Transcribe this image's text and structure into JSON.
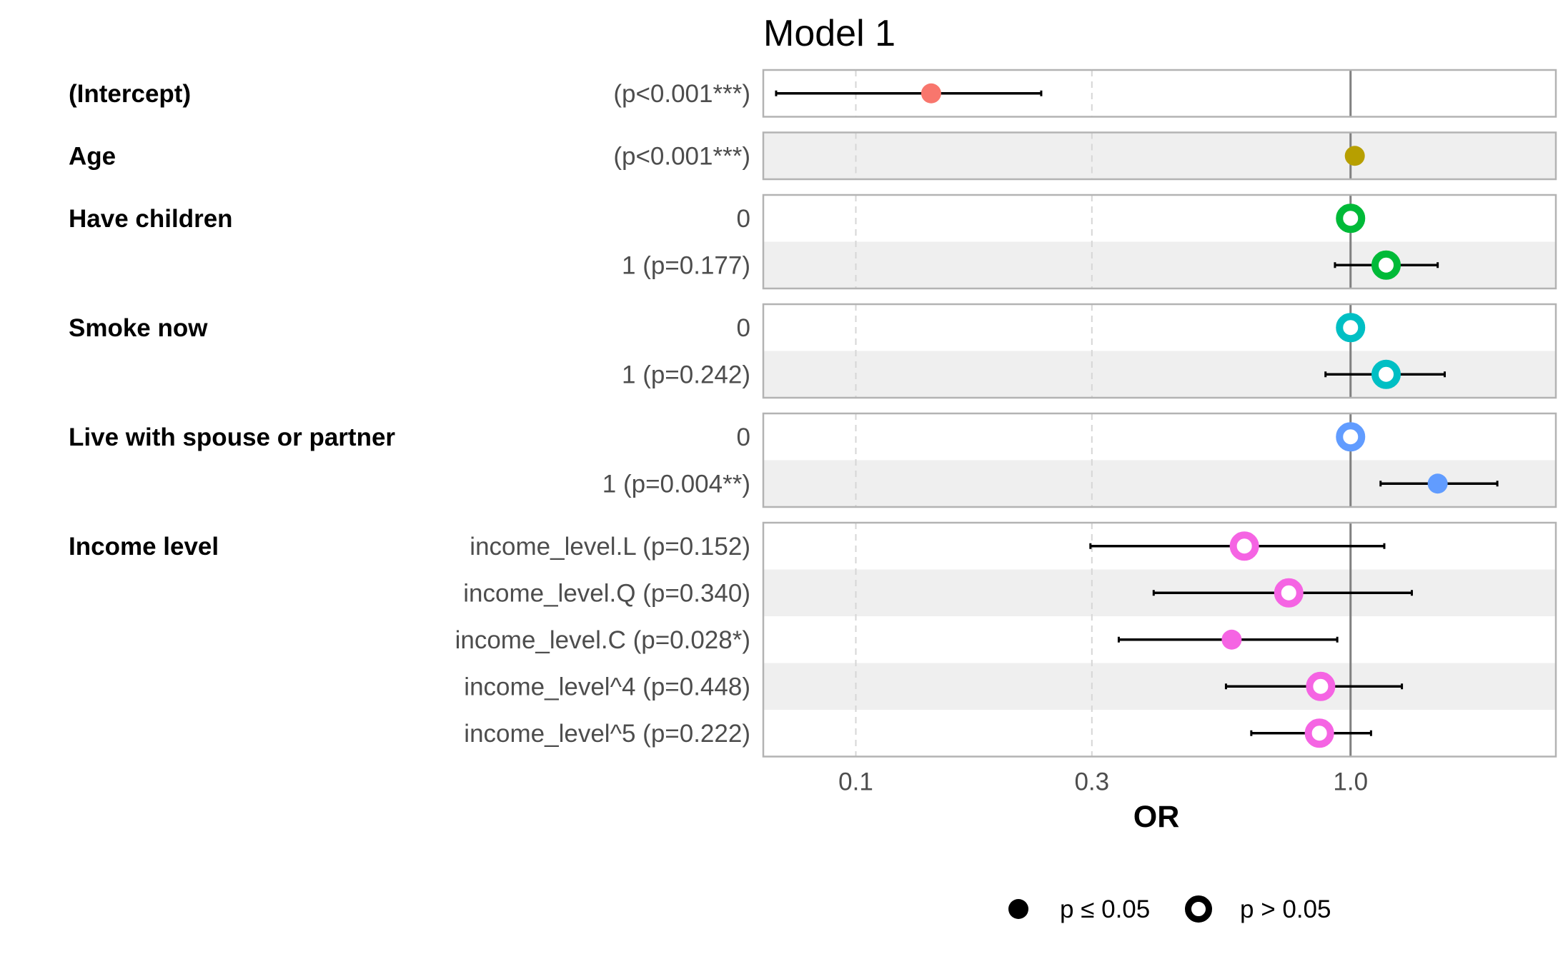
{
  "chart_data": {
    "type": "scatter",
    "subtype": "forest-plot",
    "title": "Model 1",
    "xlabel": "OR",
    "x_scale": "log",
    "xlim": [
      0.065,
      2.6
    ],
    "x_ticks": [
      {
        "value": 0.1,
        "label": "0.1"
      },
      {
        "value": 0.3,
        "label": "0.3"
      },
      {
        "value": 1.0,
        "label": "1.0"
      }
    ],
    "reference_line": 1.0,
    "grid": "vertical dashed",
    "legend_position": "bottom",
    "legend": [
      {
        "label": "p ≤ 0.05",
        "marker": "filled"
      },
      {
        "label": "p > 0.05",
        "marker": "hollow"
      }
    ],
    "groups": [
      {
        "variable": "(Intercept)",
        "color": "#F8766D",
        "rows": [
          {
            "label": "(p<0.001***)",
            "or": 0.142,
            "ci": [
              0.069,
              0.237
            ],
            "significant": true,
            "reference": false
          }
        ]
      },
      {
        "variable": "Age",
        "color": "#B79F00",
        "rows": [
          {
            "label": "(p<0.001***)",
            "or": 1.02,
            "ci": null,
            "significant": true,
            "reference": false
          }
        ]
      },
      {
        "variable": "Have children",
        "color": "#00BA38",
        "rows": [
          {
            "label": "0",
            "or": 1.0,
            "ci": null,
            "significant": false,
            "reference": true
          },
          {
            "label": "1 (p=0.177)",
            "or": 1.18,
            "ci": [
              0.93,
              1.5
            ],
            "significant": false,
            "reference": false
          }
        ]
      },
      {
        "variable": "Smoke now",
        "color": "#00BFC4",
        "rows": [
          {
            "label": "0",
            "or": 1.0,
            "ci": null,
            "significant": false,
            "reference": true
          },
          {
            "label": "1 (p=0.242)",
            "or": 1.18,
            "ci": [
              0.89,
              1.55
            ],
            "significant": false,
            "reference": false
          }
        ]
      },
      {
        "variable": "Live with spouse or partner",
        "color": "#619CFF",
        "rows": [
          {
            "label": "0",
            "or": 1.0,
            "ci": null,
            "significant": false,
            "reference": true
          },
          {
            "label": "1 (p=0.004**)",
            "or": 1.5,
            "ci": [
              1.15,
              1.98
            ],
            "significant": true,
            "reference": false
          }
        ]
      },
      {
        "variable": "Income level",
        "color": "#F564E3",
        "rows": [
          {
            "label": "income_level.L (p=0.152)",
            "or": 0.61,
            "ci": [
              0.298,
              1.17
            ],
            "significant": false,
            "reference": false
          },
          {
            "label": "income_level.Q (p=0.340)",
            "or": 0.75,
            "ci": [
              0.4,
              1.33
            ],
            "significant": false,
            "reference": false
          },
          {
            "label": "income_level.C (p=0.028*)",
            "or": 0.575,
            "ci": [
              0.34,
              0.94
            ],
            "significant": true,
            "reference": false
          },
          {
            "label": "income_level^4 (p=0.448)",
            "or": 0.87,
            "ci": [
              0.56,
              1.27
            ],
            "significant": false,
            "reference": false
          },
          {
            "label": "income_level^5 (p=0.222)",
            "or": 0.865,
            "ci": [
              0.63,
              1.1
            ],
            "significant": false,
            "reference": false
          }
        ]
      }
    ]
  }
}
